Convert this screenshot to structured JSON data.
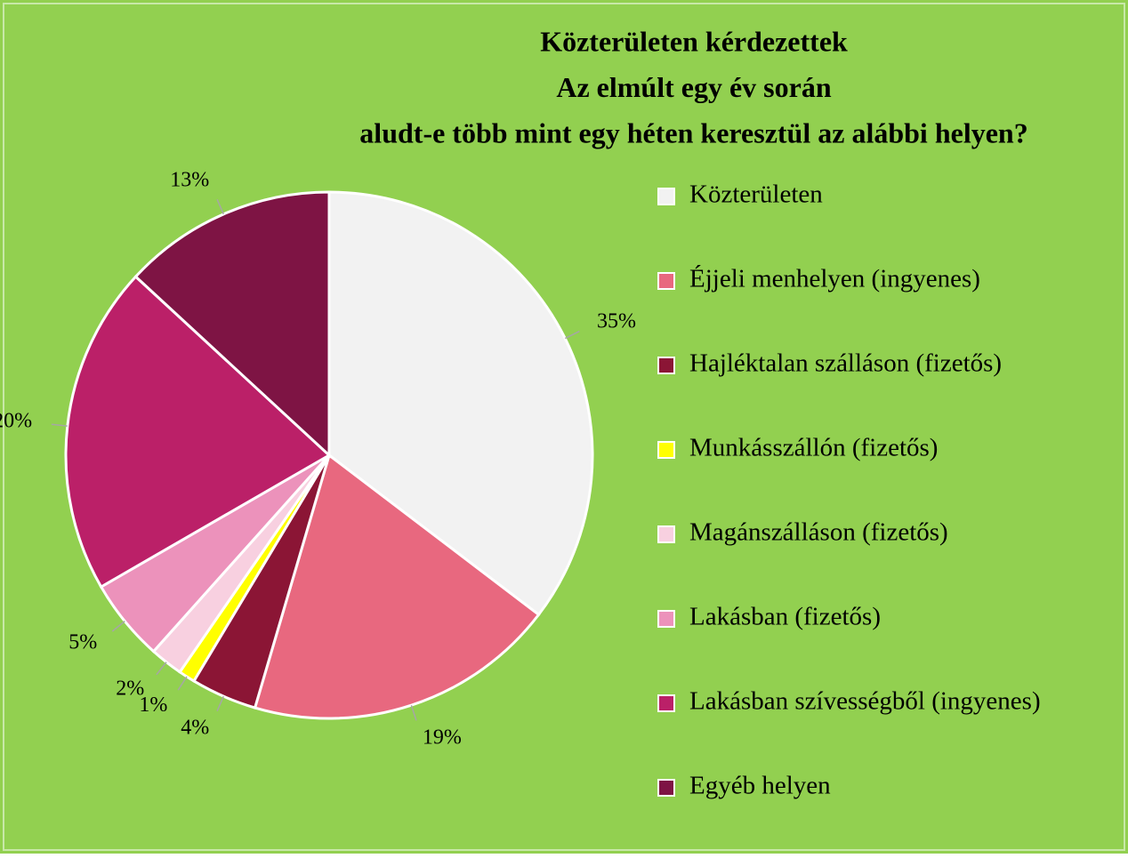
{
  "chart_data": {
    "type": "pie",
    "title": [
      "Közterületen kérdezettek",
      "Az elmúlt egy év során",
      "aludt-e több mint egy héten keresztül az alábbi helyen?"
    ],
    "categories": [
      "Közterületen",
      "Éjjeli menhelyen (ingyenes)",
      "Hajléktalan szálláson (fizetős)",
      "Munkásszállón (fizetős)",
      "Magánszálláson (fizetős)",
      "Lakásban (fizetős)",
      "Lakásban szívességből (ingyenes)",
      "Egyéb helyen"
    ],
    "values": [
      35,
      19,
      4,
      1,
      2,
      5,
      20,
      13
    ],
    "value_labels": [
      "35%",
      "19%",
      "4%",
      "1%",
      "2%",
      "5%",
      "20%",
      "13%"
    ],
    "colors": [
      "#f2f2f2",
      "#e8687f",
      "#8b1535",
      "#ffff00",
      "#f8d0e0",
      "#ec92bb",
      "#bb2068",
      "#7e1444"
    ],
    "legend": "right"
  }
}
